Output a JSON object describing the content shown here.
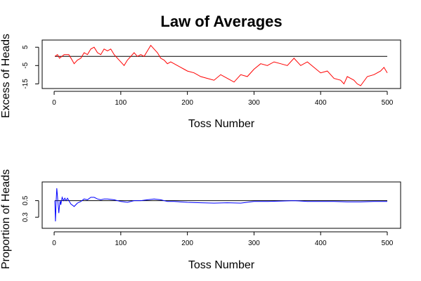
{
  "figure": {
    "title": "Law of Averages"
  },
  "chart_data": [
    {
      "type": "line",
      "title": "Law of Averages",
      "xlabel": "Toss Number",
      "ylabel": "Excess of Heads",
      "xlim": [
        1,
        500
      ],
      "ylim": [
        -16,
        7
      ],
      "xticks": [
        0,
        100,
        200,
        300,
        400,
        500
      ],
      "yticks": [
        5,
        -5,
        -15
      ],
      "reference_line": 0,
      "color": "#ff0000",
      "series": [
        {
          "x": [
            1,
            5,
            8,
            15,
            22,
            27,
            30,
            35,
            40,
            45,
            50,
            55,
            60,
            65,
            70,
            75,
            80,
            85,
            90,
            95,
            100,
            105,
            110,
            115,
            120,
            125,
            130,
            135,
            140,
            145,
            150,
            155,
            160,
            165,
            170,
            175,
            180,
            185,
            190,
            195,
            200,
            210,
            220,
            230,
            240,
            250,
            260,
            270,
            280,
            290,
            300,
            310,
            320,
            330,
            340,
            350,
            360,
            370,
            380,
            390,
            400,
            410,
            420,
            430,
            435,
            440,
            445,
            450,
            455,
            460,
            470,
            480,
            490,
            495,
            500
          ],
          "y": [
            0,
            1,
            -1,
            1,
            1,
            -2,
            -4,
            -2,
            -1,
            2,
            1,
            4,
            5,
            2,
            1,
            4,
            3,
            4,
            1,
            -1,
            -3,
            -5,
            -2,
            0,
            2,
            0,
            1,
            0,
            3,
            6,
            4,
            2,
            -1,
            -2,
            -4,
            -3,
            -4,
            -5,
            -6,
            -7,
            -8,
            -9,
            -11,
            -12,
            -13,
            -10,
            -12,
            -14,
            -10,
            -11,
            -7,
            -4,
            -5,
            -3,
            -4,
            -5,
            -1,
            -5,
            -3,
            -6,
            -9,
            -8,
            -12,
            -13,
            -15,
            -11,
            -12,
            -13,
            -15,
            -16,
            -11,
            -10,
            -8,
            -6,
            -9
          ]
        }
      ]
    },
    {
      "type": "line",
      "xlabel": "Toss Number",
      "ylabel": "Proportion of Heads",
      "xlim": [
        1,
        500
      ],
      "ylim": [
        0.2,
        0.7
      ],
      "xticks": [
        0,
        100,
        200,
        300,
        400,
        500
      ],
      "yticks": [
        0.5,
        0.3
      ],
      "reference_line": 0.5,
      "color": "#0000ff",
      "series": [
        {
          "x": [
            1,
            2,
            3,
            4,
            5,
            6,
            7,
            8,
            9,
            10,
            12,
            14,
            16,
            18,
            20,
            25,
            30,
            35,
            40,
            45,
            50,
            55,
            60,
            65,
            70,
            75,
            80,
            90,
            100,
            110,
            120,
            130,
            140,
            150,
            160,
            170,
            180,
            200,
            220,
            240,
            260,
            280,
            300,
            320,
            340,
            360,
            380,
            400,
            420,
            440,
            460,
            480,
            500
          ],
          "y": [
            0.5,
            0.25,
            0.5,
            0.65,
            0.55,
            0.45,
            0.35,
            0.44,
            0.5,
            0.45,
            0.54,
            0.5,
            0.53,
            0.5,
            0.53,
            0.46,
            0.43,
            0.47,
            0.49,
            0.52,
            0.51,
            0.54,
            0.54,
            0.52,
            0.51,
            0.52,
            0.52,
            0.51,
            0.49,
            0.48,
            0.5,
            0.5,
            0.51,
            0.52,
            0.51,
            0.49,
            0.49,
            0.48,
            0.475,
            0.47,
            0.475,
            0.47,
            0.49,
            0.49,
            0.495,
            0.5,
            0.49,
            0.49,
            0.49,
            0.485,
            0.485,
            0.49,
            0.49
          ]
        }
      ]
    }
  ]
}
